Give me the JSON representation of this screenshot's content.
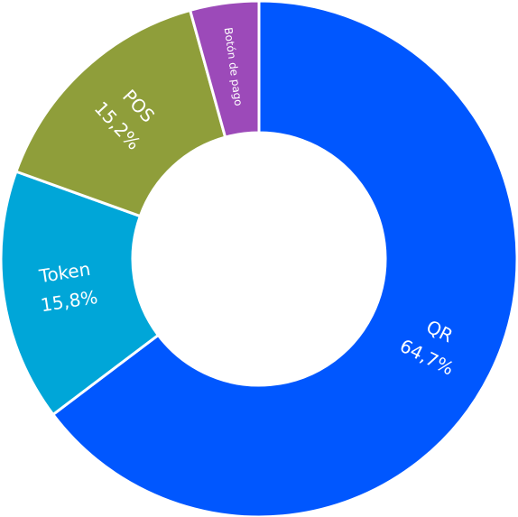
{
  "chart_data": {
    "type": "donut",
    "categories": [
      "QR",
      "Token",
      "POS",
      "Botón de pago"
    ],
    "values": [
      64.7,
      15.8,
      15.2,
      4.3
    ],
    "value_labels": [
      "64,7%",
      "15,8%",
      "15,2%",
      null
    ],
    "colors": [
      "#0057ff",
      "#00a6d8",
      "#8f9e3a",
      "#9c4ab9"
    ]
  }
}
